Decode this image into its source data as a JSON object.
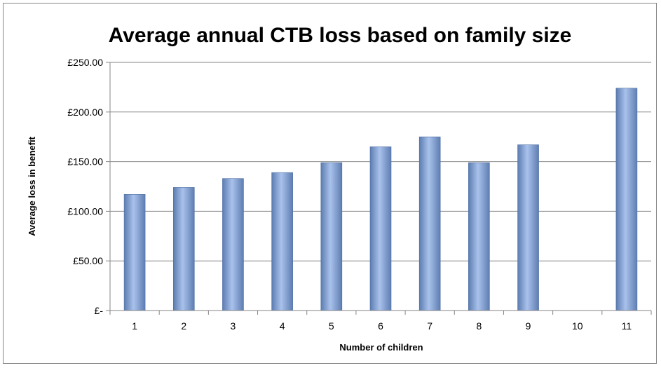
{
  "chart_data": {
    "type": "bar",
    "title": "Average annual CTB loss based on family size",
    "xlabel": "Number of children",
    "ylabel": "Average loss in benefit",
    "categories": [
      "1",
      "2",
      "3",
      "4",
      "5",
      "6",
      "7",
      "8",
      "9",
      "10",
      "11"
    ],
    "values": [
      117,
      124,
      133,
      139,
      149,
      165,
      175,
      149,
      167,
      0,
      224
    ],
    "ylim": [
      0,
      250
    ],
    "yticks": [
      0,
      50,
      100,
      150,
      200,
      250
    ],
    "ytick_labels": [
      "£-",
      "£50.00",
      "£100.00",
      "£150.00",
      "£200.00",
      "£250.00"
    ],
    "grid": true,
    "legend": "none",
    "bar_color": "#7f9fd3"
  }
}
